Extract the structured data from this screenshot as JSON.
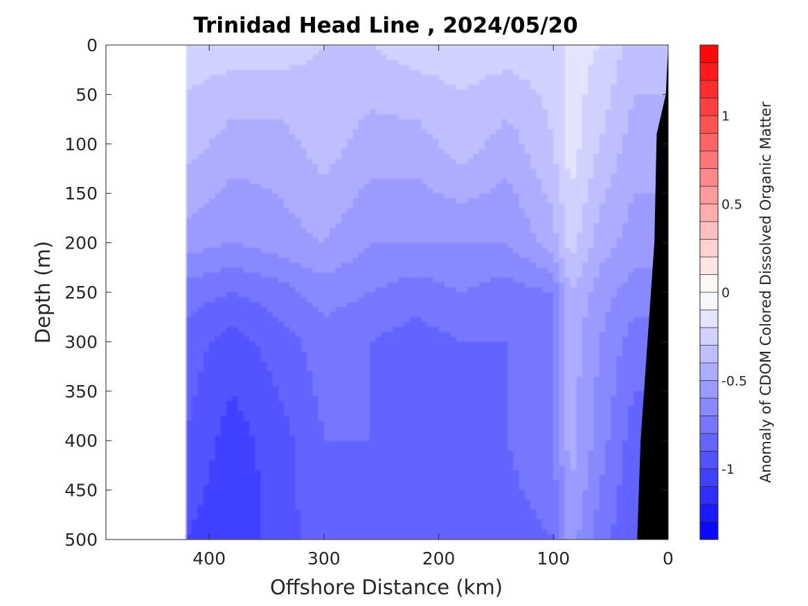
{
  "chart_data": {
    "type": "heatmap",
    "title": "Trinidad Head Line , 2024/05/20",
    "xlabel": "Offshore Distance (km)",
    "ylabel": "Depth (m)",
    "x_reversed": true,
    "y_reversed": true,
    "xlim": [
      490,
      0
    ],
    "ylim": [
      0,
      500
    ],
    "x_ticks": [
      400,
      300,
      200,
      100,
      0
    ],
    "x_tick_labels": [
      "400",
      "300",
      "200",
      "100",
      "0"
    ],
    "y_ticks": [
      0,
      50,
      100,
      150,
      200,
      250,
      300,
      350,
      400,
      450,
      500
    ],
    "y_tick_labels": [
      "0",
      "50",
      "100",
      "150",
      "200",
      "250",
      "300",
      "350",
      "400",
      "450",
      "500"
    ],
    "data_extent_x_km": [
      0,
      420
    ],
    "colorbar": {
      "label": "Anomaly of CDOM Colored Dissolved Organic Matter",
      "range": [
        -1.4,
        1.4
      ],
      "levels": 28,
      "ticks": [
        1,
        0.5,
        0,
        -0.5,
        -1
      ],
      "tick_labels": [
        "1",
        "0.5",
        "0",
        "-0.5",
        "-1"
      ],
      "cmap": "blue-white-red"
    },
    "grid": {
      "x_km": [
        420,
        380,
        340,
        300,
        260,
        220,
        180,
        140,
        100,
        85,
        60,
        30,
        0
      ],
      "depth_m": [
        0,
        100,
        200,
        250,
        300,
        400,
        500
      ],
      "values": [
        [
          -0.25,
          -0.25,
          -0.25,
          -0.3,
          -0.3,
          -0.25,
          -0.25,
          -0.25,
          -0.25,
          -0.15,
          -0.2,
          -0.35,
          -0.35
        ],
        [
          -0.35,
          -0.45,
          -0.45,
          -0.35,
          -0.45,
          -0.45,
          -0.35,
          -0.45,
          -0.3,
          -0.15,
          -0.3,
          -0.45,
          -0.45
        ],
        [
          -0.55,
          -0.6,
          -0.55,
          -0.5,
          -0.6,
          -0.6,
          -0.6,
          -0.6,
          -0.45,
          -0.25,
          -0.45,
          -0.55,
          -0.55
        ],
        [
          -0.75,
          -0.8,
          -0.75,
          -0.65,
          -0.7,
          -0.75,
          -0.7,
          -0.75,
          -0.7,
          -0.4,
          -0.55,
          -0.65,
          -0.65
        ],
        [
          -0.85,
          -0.95,
          -0.85,
          -0.75,
          -0.8,
          -0.85,
          -0.8,
          -0.8,
          -0.75,
          -0.45,
          -0.6,
          -0.75,
          -0.75
        ],
        [
          -0.9,
          -1.05,
          -0.95,
          -0.8,
          -0.8,
          -0.85,
          -0.85,
          -0.8,
          -0.7,
          -0.45,
          -0.65,
          -0.85,
          -0.85
        ],
        [
          -1.0,
          -1.1,
          -0.95,
          -0.85,
          -0.85,
          -0.9,
          -0.85,
          -0.85,
          -0.8,
          -0.55,
          -0.75,
          -0.9,
          -0.9
        ]
      ]
    },
    "seafloor_color": "#000000",
    "seafloor_profile": [
      [
        0,
        0
      ],
      [
        2,
        50
      ],
      [
        10,
        90
      ],
      [
        12,
        200
      ],
      [
        18,
        300
      ],
      [
        24,
        400
      ],
      [
        27,
        500
      ]
    ]
  }
}
